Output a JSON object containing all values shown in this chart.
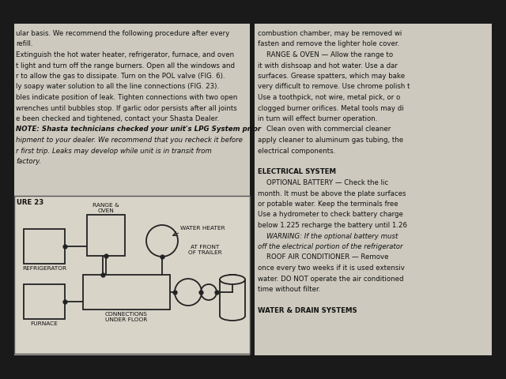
{
  "bg_outer": "#1a1a1a",
  "bg_page": "#d4d0c4",
  "left_text_lines": [
    [
      "ular basis. We recommend the following procedure after every",
      false,
      false
    ],
    [
      "refill.",
      false,
      false
    ],
    [
      "Extinguish the hot water heater, refrigerator, furnace, and oven",
      false,
      false
    ],
    [
      "t light and turn off the range burners. Open all the windows and",
      false,
      false
    ],
    [
      "r to allow the gas to dissipate. Turn on the POL valve (FIG. 6).",
      false,
      false
    ],
    [
      "ly soapy water solution to all the line connections (FIG. 23).",
      false,
      false
    ],
    [
      "bles indicate position of leak. Tighten connections with two open",
      false,
      false
    ],
    [
      "wrenches until bubbles stop. If garlic odor persists after all joints",
      false,
      false
    ],
    [
      "e been checked and tightened, contact your Shasta Dealer.",
      false,
      false
    ],
    [
      "NOTE: Shasta technicians checked your unit's LPG System prior",
      true,
      true
    ],
    [
      "hipment to your dealer. We recommend that you recheck it before",
      false,
      true
    ],
    [
      "r first trip. Leaks may develop while unit is in transit from",
      false,
      true
    ],
    [
      "factory.",
      false,
      true
    ]
  ],
  "right_text_lines": [
    [
      "combustion chamber, may be removed wi",
      false,
      false
    ],
    [
      "fasten and remove the lighter hole cover.",
      false,
      false
    ],
    [
      "    RANGE & OVEN — Allow the range to",
      false,
      false
    ],
    [
      "it with dishsoap and hot water. Use a dar",
      false,
      false
    ],
    [
      "surfaces. Grease spatters, which may bake",
      false,
      false
    ],
    [
      "very difficult to remove. Use chrome polish t",
      false,
      false
    ],
    [
      "Use a toothpick, not wire, metal pick, or o",
      false,
      false
    ],
    [
      "clogged burner orifices. Metal tools may di",
      false,
      false
    ],
    [
      "in turn will effect burner operation.",
      false,
      false
    ],
    [
      "    Clean oven with commercial cleaner",
      false,
      false
    ],
    [
      "apply cleaner to aluminum gas tubing, the",
      false,
      false
    ],
    [
      "electrical components.",
      false,
      false
    ],
    [
      "",
      false,
      false
    ],
    [
      "ELECTRICAL SYSTEM",
      true,
      false
    ],
    [
      "    OPTIONAL BATTERY — Check the lic",
      false,
      false
    ],
    [
      "month. It must be above the plate surfaces",
      false,
      false
    ],
    [
      "or potable water. Keep the terminals free",
      false,
      false
    ],
    [
      "Use a hydrometer to check battery charge",
      false,
      false
    ],
    [
      "below 1.225 recharge the battery until 1.26",
      false,
      false
    ],
    [
      "    WARNING: If the optional battery must",
      false,
      true
    ],
    [
      "off the electrical portion of the refrigerator",
      false,
      true
    ],
    [
      "    ROOF AIR CONDITIONER — Remove",
      false,
      false
    ],
    [
      "once every two weeks if it is used extensiv",
      false,
      false
    ],
    [
      "water. DO NOT operate the air conditioned",
      false,
      false
    ],
    [
      "time without filter.",
      false,
      false
    ],
    [
      "",
      false,
      false
    ],
    [
      "WATER & DRAIN SYSTEMS",
      true,
      false
    ]
  ],
  "fig_label": "URE 23"
}
